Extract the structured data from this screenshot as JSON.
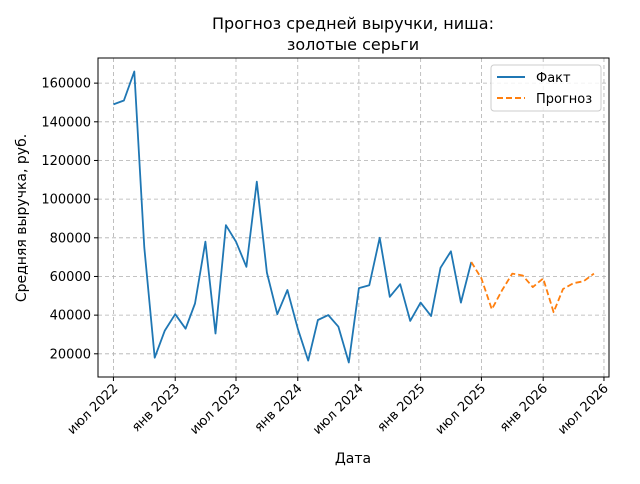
{
  "chart_data": {
    "type": "line",
    "title": "Прогноз средней выручки, ниша:\nзолотые серьги",
    "xlabel": "Дата",
    "ylabel": "Средняя выручка, руб.",
    "grid": true,
    "legend_position": "top-right",
    "xlim": [
      "2022-05-16",
      "2026-07-16"
    ],
    "ylim": [
      8000,
      173000
    ],
    "x_ticks": [
      {
        "date": "2022-07-01",
        "label": "июл 2022"
      },
      {
        "date": "2023-01-01",
        "label": "янв 2023"
      },
      {
        "date": "2023-07-01",
        "label": "июл 2023"
      },
      {
        "date": "2024-01-01",
        "label": "янв 2024"
      },
      {
        "date": "2024-07-01",
        "label": "июл 2024"
      },
      {
        "date": "2025-01-01",
        "label": "янв 2025"
      },
      {
        "date": "2025-07-01",
        "label": "июл 2025"
      },
      {
        "date": "2026-01-01",
        "label": "янв 2026"
      },
      {
        "date": "2026-07-01",
        "label": "июл 2026"
      }
    ],
    "y_ticks": [
      20000,
      40000,
      60000,
      80000,
      100000,
      120000,
      140000,
      160000
    ],
    "y_tick_labels": [
      "20000",
      "40000",
      "60000",
      "80000",
      "100000",
      "120000",
      "140000",
      "160000"
    ],
    "series": [
      {
        "name": "Факт",
        "color": "#1f77b4",
        "style": "solid",
        "x": [
          "2022-07-01",
          "2022-08-01",
          "2022-09-01",
          "2022-10-01",
          "2022-11-01",
          "2022-12-01",
          "2023-01-01",
          "2023-02-01",
          "2023-03-01",
          "2023-04-01",
          "2023-05-01",
          "2023-06-01",
          "2023-07-01",
          "2023-08-01",
          "2023-09-01",
          "2023-10-01",
          "2023-11-01",
          "2023-12-01",
          "2024-01-01",
          "2024-02-01",
          "2024-03-01",
          "2024-04-01",
          "2024-05-01",
          "2024-06-01",
          "2024-07-01",
          "2024-08-01",
          "2024-09-01",
          "2024-10-01",
          "2024-11-01",
          "2024-12-01",
          "2025-01-01",
          "2025-02-01",
          "2025-03-01",
          "2025-04-01",
          "2025-05-01",
          "2025-06-01"
        ],
        "values": [
          149000,
          151000,
          166000,
          75000,
          18000,
          32000,
          40500,
          33000,
          46000,
          78000,
          30500,
          86500,
          78000,
          65000,
          109000,
          62000,
          40500,
          53000,
          33000,
          16500,
          37500,
          40000,
          34000,
          15500,
          54000,
          55500,
          80000,
          49500,
          56000,
          37000,
          46500,
          39500,
          64500,
          73000,
          46500,
          67500
        ]
      },
      {
        "name": "Прогноз",
        "color": "#ff7f0e",
        "style": "dashed",
        "x": [
          "2025-06-01",
          "2025-07-01",
          "2025-08-01",
          "2025-09-01",
          "2025-10-01",
          "2025-11-01",
          "2025-12-01",
          "2026-01-01",
          "2026-02-01",
          "2026-03-01",
          "2026-04-01",
          "2026-05-01",
          "2026-06-01"
        ],
        "values": [
          67500,
          59000,
          43000,
          53000,
          61500,
          60500,
          54500,
          59000,
          41500,
          53500,
          56500,
          57500,
          61500
        ]
      }
    ]
  }
}
